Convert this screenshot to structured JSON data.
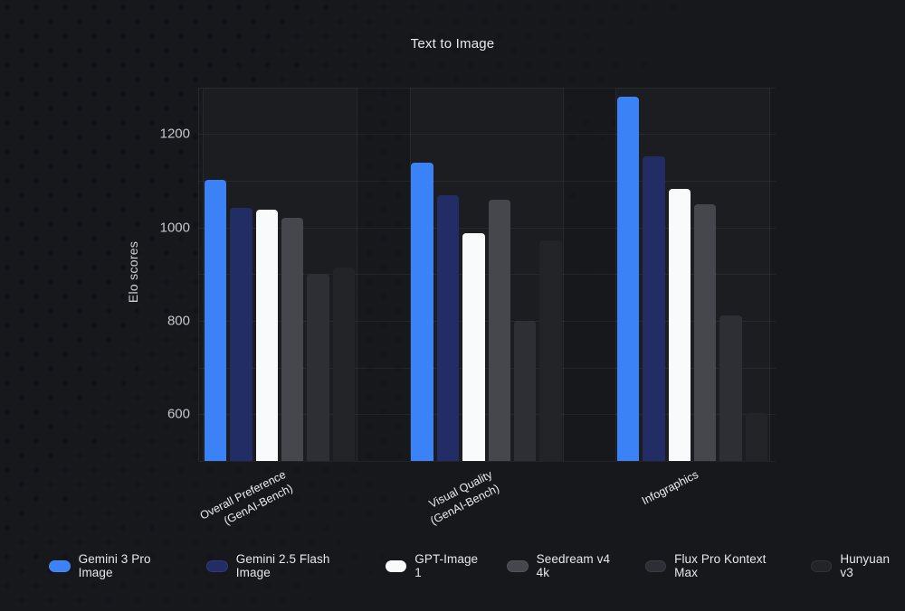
{
  "title": "Text to Image",
  "chart_data": {
    "type": "bar",
    "title": "Text to Image",
    "xlabel": "",
    "ylabel": "Elo scores",
    "ylim": [
      500,
      1300
    ],
    "ytick_labels": [
      600,
      800,
      1000,
      1200
    ],
    "gridline_step": 100,
    "grid": true,
    "legend_position": "bottom",
    "categories": [
      "Overall Preference (GenAI-Bench)",
      "Visual Quality (GenAI-Bench)",
      "Infographics"
    ],
    "category_label_lines": [
      [
        "Overall Preference",
        "(GenAI-Bench)"
      ],
      [
        "Visual Quality",
        "(GenAI-Bench)"
      ],
      [
        "Infographics"
      ]
    ],
    "series": [
      {
        "name": "Gemini 3 Pro Image",
        "color": "#3b82f6",
        "values": [
          1102,
          1138,
          1280
        ]
      },
      {
        "name": "Gemini 2.5 Flash Image",
        "color": "#222d66",
        "values": [
          1042,
          1070,
          1152
        ]
      },
      {
        "name": "GPT-Image 1",
        "color": "#f8fafc",
        "values": [
          1038,
          988,
          1082
        ]
      },
      {
        "name": "Seedream v4 4k",
        "color": "#46474c",
        "values": [
          1021,
          1060,
          1050
        ]
      },
      {
        "name": "Flux Pro Kontext Max",
        "color": "#2e2f34",
        "values": [
          900,
          800,
          811
        ]
      },
      {
        "name": "Hunyuan v3",
        "color": "#232428",
        "values": [
          915,
          972,
          602
        ]
      }
    ]
  },
  "colors": {
    "page_background": "#17181c",
    "band_background": "#1c1d21",
    "gridline": "rgba(255,255,255,0.055)",
    "title_text": "#e8eaed",
    "tick_text": "#c4c7cc",
    "category_text": "#eceef0",
    "legend_text": "#e6e8ea",
    "accent_blue": "#3b82f6"
  }
}
